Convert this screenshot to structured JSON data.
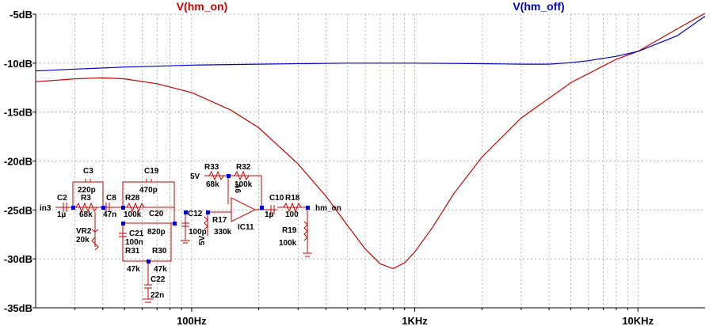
{
  "chart_data": {
    "type": "line",
    "x_scale": "log",
    "xlim": [
      20,
      20000
    ],
    "ylim": [
      -35,
      -5
    ],
    "yticks": [
      -5,
      -10,
      -15,
      -20,
      -25,
      -30,
      -35
    ],
    "ytick_labels": [
      "-5dB",
      "-10dB",
      "-15dB",
      "-20dB",
      "-25dB",
      "-30dB",
      "-35dB"
    ],
    "xticks": [
      100,
      1000,
      10000
    ],
    "xtick_labels": [
      "100Hz",
      "1KHz",
      "10KHz"
    ],
    "grid": true,
    "series": [
      {
        "name": "V(hm_on)",
        "color": "#cc0000",
        "x": [
          20,
          30,
          40,
          50,
          70,
          100,
          150,
          200,
          300,
          400,
          500,
          600,
          700,
          800,
          900,
          1000,
          1200,
          1500,
          2000,
          3000,
          5000,
          8000,
          10000,
          15000,
          20000
        ],
        "y": [
          -11.9,
          -11.6,
          -11.5,
          -11.6,
          -12.1,
          -13.0,
          -14.8,
          -16.6,
          -20.3,
          -23.6,
          -26.6,
          -29.0,
          -30.5,
          -31.0,
          -30.4,
          -29.3,
          -26.8,
          -23.3,
          -19.6,
          -15.6,
          -12.0,
          -9.6,
          -8.8,
          -6.5,
          -4.9
        ]
      },
      {
        "name": "V(hm_off)",
        "color": "#0000cc",
        "x": [
          20,
          30,
          50,
          100,
          200,
          500,
          1000,
          2000,
          3000,
          4000,
          5000,
          6000,
          8000,
          10000,
          15000,
          20000
        ],
        "y": [
          -10.8,
          -10.6,
          -10.4,
          -10.2,
          -10.1,
          -10.0,
          -10.0,
          -10.05,
          -10.1,
          -10.1,
          -9.95,
          -9.75,
          -9.3,
          -8.8,
          -7.2,
          -5.2
        ]
      }
    ]
  },
  "schematic": {
    "labels": [
      "C3",
      "220p",
      "C19",
      "470p",
      "R33",
      "68k",
      "R32",
      "100k",
      "5V",
      "C2",
      "1µ",
      "R3",
      "68k",
      "C8",
      "47n",
      "R28",
      "100k",
      "C20",
      "820p",
      "C12",
      "100p",
      "R17",
      "330k",
      "9V",
      "C10",
      "1µ",
      "R18",
      "100",
      "hm_on",
      "in3",
      "VR2",
      "20k",
      "C21",
      "100n",
      "5V",
      "IC11",
      "R19",
      "100k",
      "R31",
      "47k",
      "R30",
      "47k",
      "C22",
      "22n"
    ]
  }
}
